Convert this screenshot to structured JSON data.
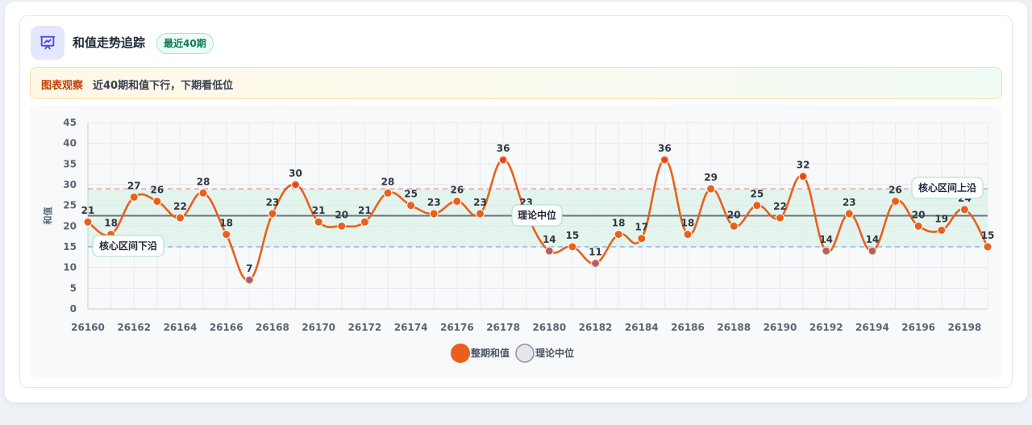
{
  "header": {
    "title": "和值走势追踪",
    "badge": "最近40期",
    "icon": "chart-presentation-icon"
  },
  "observation": {
    "tag": "图表观察",
    "text": "近40期和值下行，下期看低位"
  },
  "chart_data": {
    "type": "line",
    "ylabel": "和值",
    "xlabel": "",
    "ylim": [
      0,
      45
    ],
    "yticks": [
      0,
      5,
      10,
      15,
      20,
      25,
      30,
      35,
      40,
      45
    ],
    "x": [
      26160,
      26161,
      26162,
      26163,
      26164,
      26165,
      26166,
      26167,
      26168,
      26169,
      26170,
      26171,
      26172,
      26173,
      26174,
      26175,
      26176,
      26177,
      26178,
      26179,
      26180,
      26181,
      26182,
      26183,
      26184,
      26185,
      26186,
      26187,
      26188,
      26189,
      26190,
      26191,
      26192,
      26193,
      26194,
      26195,
      26196,
      26197,
      26198,
      26199
    ],
    "xticks": [
      26160,
      26162,
      26164,
      26166,
      26168,
      26170,
      26172,
      26174,
      26176,
      26178,
      26180,
      26182,
      26184,
      26186,
      26188,
      26190,
      26192,
      26194,
      26196,
      26198
    ],
    "series": [
      {
        "name": "整期和值",
        "color": "#e8601c",
        "values": [
          21,
          18,
          27,
          26,
          22,
          28,
          18,
          7,
          23,
          30,
          21,
          20,
          21,
          28,
          25,
          23,
          26,
          23,
          36,
          23,
          14,
          15,
          11,
          18,
          17,
          36,
          18,
          29,
          20,
          25,
          22,
          32,
          14,
          23,
          14,
          26,
          20,
          19,
          24,
          15
        ]
      }
    ],
    "reference_lines": [
      {
        "name": "理论中位",
        "value": 22.5,
        "color": "#6b7280",
        "label": "理论中位"
      },
      {
        "name": "核心区间上沿",
        "value": 29,
        "color": "#e88b8b",
        "label": "核心区间上沿"
      },
      {
        "name": "核心区间下沿",
        "value": 15,
        "color": "#7b9fe6",
        "label": "核心区间下沿"
      }
    ],
    "band": {
      "from": 15,
      "to": 29,
      "color": "#dff3ea"
    },
    "legend": [
      {
        "label": "整期和值",
        "color": "#e8601c"
      },
      {
        "label": "理论中位",
        "color": "#e5e7eb"
      }
    ],
    "grid": true,
    "legend_position": "bottom"
  }
}
